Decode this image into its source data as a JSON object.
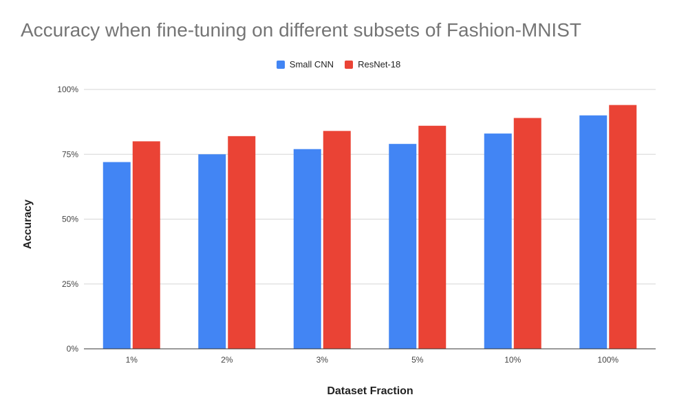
{
  "chart_data": {
    "type": "bar",
    "title": "Accuracy when fine-tuning on different subsets of Fashion-MNIST",
    "xlabel": "Dataset Fraction",
    "ylabel": "Accuracy",
    "categories": [
      "1%",
      "2%",
      "3%",
      "5%",
      "10%",
      "100%"
    ],
    "series": [
      {
        "name": "Small CNN",
        "color": "#4285f4",
        "values": [
          72,
          75,
          77,
          79,
          83,
          90
        ]
      },
      {
        "name": "ResNet-18",
        "color": "#ea4335",
        "values": [
          80,
          82,
          84,
          86,
          89,
          94
        ]
      }
    ],
    "ylim": [
      0,
      100
    ],
    "yticks": [
      0,
      25,
      50,
      75,
      100
    ],
    "ytick_labels": [
      "0%",
      "25%",
      "50%",
      "75%",
      "100%"
    ],
    "grid": true,
    "legend_position": "top"
  }
}
